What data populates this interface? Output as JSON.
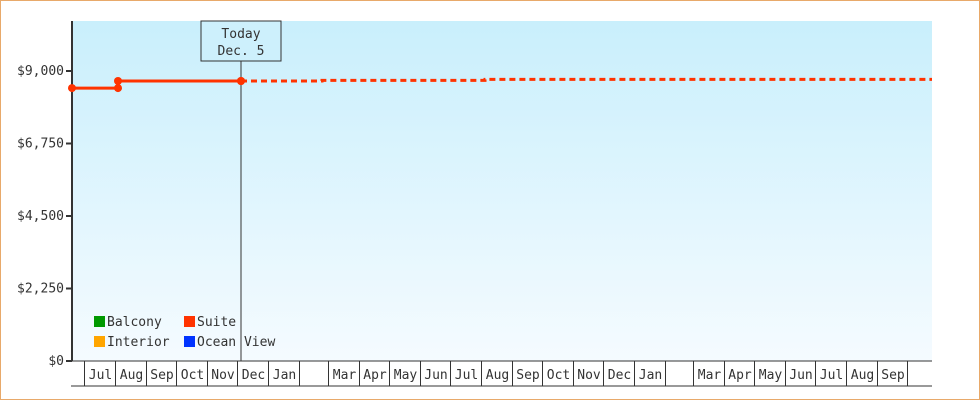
{
  "chart_data": {
    "type": "line",
    "title": "",
    "xlabel": "",
    "ylabel": "",
    "ylim": [
      0,
      10500
    ],
    "y_ticks": [
      "$0",
      "$2,250",
      "$4,500",
      "$6,750",
      "$9,000"
    ],
    "y_tick_values": [
      0,
      2250,
      4500,
      6750,
      9000
    ],
    "x_ticks": [
      "Jul",
      "Aug",
      "Sep",
      "Oct",
      "Nov",
      "Dec",
      "Jan",
      "",
      "Mar",
      "Apr",
      "May",
      "Jun",
      "Jul",
      "Aug",
      "Sep",
      "Oct",
      "Nov",
      "Dec",
      "Jan",
      "",
      "Mar",
      "Apr",
      "May",
      "Jun",
      "Jul",
      "Aug",
      "Sep"
    ],
    "grid": false,
    "legend_placement": "bottom-left",
    "legend": [
      {
        "name": "Balcony",
        "color": "#009900"
      },
      {
        "name": "Suite",
        "color": "#ff3300"
      },
      {
        "name": "Interior",
        "color": "#ffa500"
      },
      {
        "name": "Ocean View",
        "color": "#0033ff"
      }
    ],
    "series": [
      {
        "name": "Suite",
        "color": "#ff3300",
        "style": "solid",
        "step": true,
        "points": [
          {
            "date": "Jun 19",
            "value": 8470
          },
          {
            "date": "Aug 4",
            "value": 8690
          },
          {
            "date": "Dec 5",
            "value": 8690
          }
        ]
      },
      {
        "name": "Suite",
        "color": "#ff3300",
        "style": "dotted",
        "step": true,
        "points": [
          {
            "date": "Dec 5",
            "value": 8690
          },
          {
            "date": "Feb 24",
            "value": 8710
          },
          {
            "date": "Aug 5",
            "value": 8740
          },
          {
            "date": "Oct 5",
            "value": 8740
          }
        ]
      }
    ],
    "annotation": {
      "line1": "Today",
      "line2": "Dec. 5",
      "date": "Dec 5"
    },
    "background_gradient": [
      "#c9effc",
      "#f5fbff"
    ],
    "axis_color": "#333333"
  }
}
